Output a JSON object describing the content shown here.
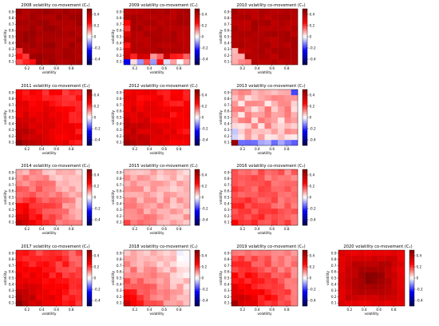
{
  "chart_data": [
    {
      "title": "2008 volatility co-movement (C₁)",
      "level": 0.42,
      "corner": 0.2,
      "pattern": "uniform"
    },
    {
      "title": "2009 volatility co-movement (C₁)",
      "level": 0.4,
      "corner": 0.0,
      "pattern": "2009"
    },
    {
      "title": "2010 volatility co-movement (C₁)",
      "level": 0.4,
      "corner": 0.1,
      "pattern": "uniform"
    },
    {
      "title": "2011 volatility co-movement (C₁)",
      "level": 0.2,
      "corner": 0.48,
      "pattern": "corner"
    },
    {
      "title": "2012 volatility co-movement (C₁)",
      "level": 0.22,
      "corner": 0.46,
      "pattern": "corner"
    },
    {
      "title": "2013 volatility co-movement (C₁)",
      "level": 0.08,
      "corner": 0.15,
      "pattern": "2013"
    },
    {
      "title": "2014 volatility co-movement (C₁)",
      "level": 0.04,
      "corner": 0.4,
      "pattern": "corner"
    },
    {
      "title": "2015 volatility co-movement (C₁)",
      "level": 0.06,
      "corner": 0.16,
      "pattern": "corner"
    },
    {
      "title": "2016 volatility co-movement (C₁)",
      "level": 0.14,
      "corner": 0.24,
      "pattern": "corner"
    },
    {
      "title": "2017 volatility co-movement (C₁)",
      "level": 0.16,
      "corner": 0.48,
      "pattern": "corner"
    },
    {
      "title": "2018 volatility co-movement (C₁)",
      "level": 0.01,
      "corner": 0.34,
      "pattern": "corner"
    },
    {
      "title": "2019 volatility co-movement (C₁)",
      "level": 0.1,
      "corner": 0.44,
      "pattern": "corner"
    },
    {
      "title": "2020 volatility co-movement (C₁)",
      "level": 0.3,
      "corner": 0.5,
      "pattern": "center"
    }
  ],
  "shared": {
    "type": "heatmap",
    "xlabel": "volatility",
    "ylabel": "volatility",
    "x_ticks": [
      "0.2",
      "0.4",
      "0.6",
      "0.8"
    ],
    "y_ticks": [
      "0.1",
      "0.2",
      "0.3",
      "0.4",
      "0.5",
      "0.6",
      "0.7",
      "0.8",
      "0.9"
    ],
    "colorbar_ticks": [
      "0.4",
      "0.2",
      "0",
      "-0.2",
      "-0.4"
    ],
    "colorbar_range": [
      -0.5,
      0.5
    ],
    "colormap": "seismic",
    "colors": {
      "negative": "#00004c",
      "mid_negative": "#0000ff",
      "zero": "#ffffff",
      "mid_positive": "#ff0000",
      "positive": "#800000"
    }
  }
}
